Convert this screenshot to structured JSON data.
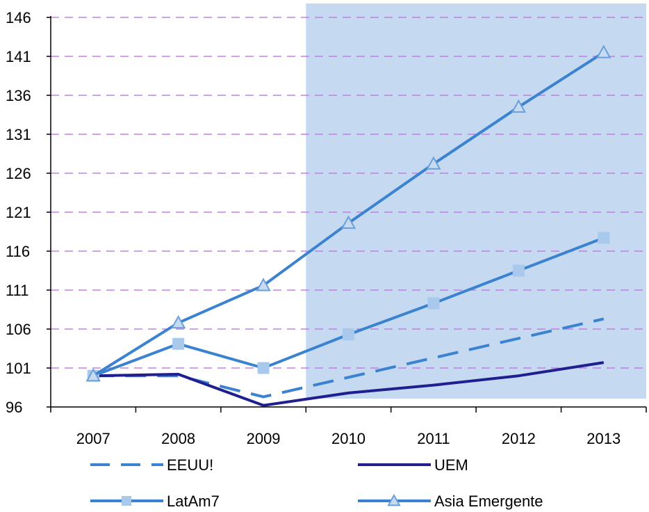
{
  "chart_data": {
    "type": "line",
    "title": "",
    "xlabel": "",
    "ylabel": "",
    "categories": [
      "2007",
      "2008",
      "2009",
      "2010",
      "2011",
      "2012",
      "2013"
    ],
    "ylim": [
      96,
      146
    ],
    "yticks": [
      96,
      101,
      106,
      111,
      116,
      121,
      126,
      131,
      136,
      141,
      146
    ],
    "grid": "horizontal dashed",
    "shaded_region": {
      "from": "2009.5",
      "to": "2013.5",
      "color": "#c5d9f1"
    },
    "legend_position": "bottom",
    "series": [
      {
        "name": "EEUU!",
        "style": "dashed",
        "marker": "none",
        "color": "#3b82d0",
        "values": [
          100,
          100,
          97.3,
          99.8,
          102.3,
          104.8,
          107.3
        ]
      },
      {
        "name": "UEM",
        "style": "solid",
        "marker": "none",
        "color": "#1f1f8f",
        "values": [
          100,
          100.2,
          96.2,
          97.8,
          98.8,
          100.0,
          101.7
        ]
      },
      {
        "name": "LatAm7",
        "style": "solid",
        "marker": "square",
        "color": "#3b82d0",
        "values": [
          100,
          104.1,
          101,
          105.3,
          109.3,
          113.5,
          117.7
        ]
      },
      {
        "name": "Asia Emergente",
        "style": "solid",
        "marker": "triangle",
        "color": "#3b82d0",
        "values": [
          100,
          106.8,
          111.6,
          119.6,
          127.2,
          134.5,
          141.5
        ]
      }
    ]
  }
}
